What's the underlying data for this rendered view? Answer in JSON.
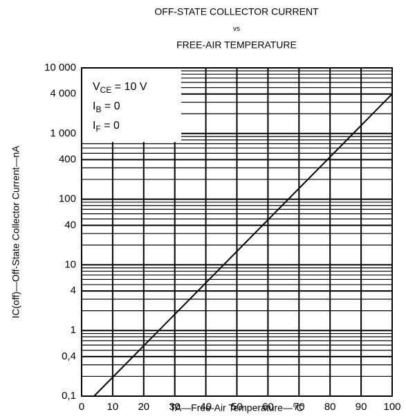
{
  "chart_data": {
    "type": "line",
    "title": [
      "OFF-STATE COLLECTOR CURRENT",
      "vs",
      "FREE-AIR TEMPERATURE"
    ],
    "xlabel": "TA—Free-Air Temperature—°C",
    "ylabel": "IC(off)—Off-State Collector Current—nA",
    "annotations": [
      {
        "text": "V",
        "sub": "CE",
        "suffix": " = 10 V"
      },
      {
        "text": "I",
        "sub": "B",
        "suffix": " = 0"
      },
      {
        "text": "I",
        "sub": "F",
        "suffix": " = 0"
      }
    ],
    "x": [
      4,
      100
    ],
    "series": [
      {
        "name": "IC(off)",
        "color": "#000000",
        "values": [
          0.1,
          4000
        ]
      }
    ],
    "xlim": [
      0,
      100
    ],
    "xticks": [
      0,
      10,
      20,
      30,
      40,
      50,
      60,
      70,
      80,
      90,
      100
    ],
    "ylim": [
      0.1,
      10000
    ],
    "ylog": true,
    "yticks": [
      {
        "value": 0.1,
        "label": "0,1"
      },
      {
        "value": 0.4,
        "label": "0,4"
      },
      1,
      4,
      10,
      40,
      100,
      400,
      {
        "value": 1000,
        "label": "1 000"
      },
      {
        "value": 4000,
        "label": "4 000"
      },
      {
        "value": 10000,
        "label": "10 000"
      }
    ],
    "grid": true,
    "minor_grid": true
  }
}
